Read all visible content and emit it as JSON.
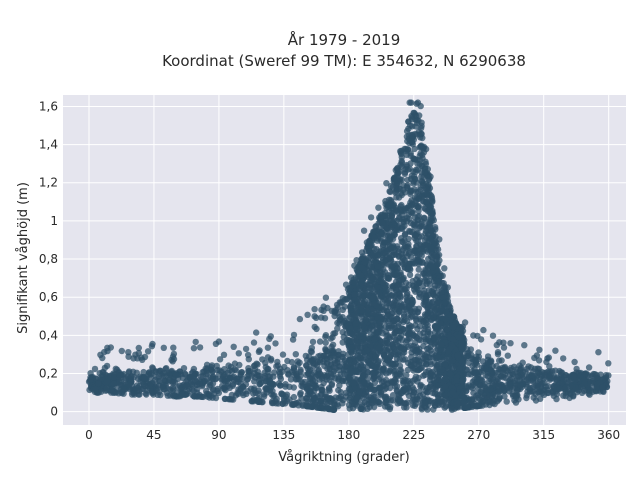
{
  "chart_data": {
    "type": "scatter",
    "title": "År 1979 - 2019",
    "subtitle": "Koordinat (Sweref 99 TM): E 354632, N 6290638",
    "xlabel": "Vågriktning (grader)",
    "ylabel": "Signifikant våghöjd (m)",
    "xlim": [
      -18,
      372
    ],
    "ylim": [
      -0.07,
      1.66
    ],
    "xticks": [
      0,
      45,
      90,
      135,
      180,
      225,
      270,
      315,
      360
    ],
    "xtick_labels": [
      "0",
      "45",
      "90",
      "135",
      "180",
      "225",
      "270",
      "315",
      "360"
    ],
    "yticks": [
      0,
      0.2,
      0.4,
      0.6,
      0.8,
      1.0,
      1.2,
      1.4,
      1.6
    ],
    "ytick_labels": [
      "0",
      "0,2",
      "0,4",
      "0,6",
      "0,8",
      "1",
      "1,2",
      "1,4",
      "1,6"
    ],
    "grid": true,
    "legend": "none",
    "marker_color": "#2e5068",
    "plot_background": "#e5e5ee",
    "grid_color": "#ffffff",
    "envelope": {
      "description_x": [
        0,
        15,
        30,
        45,
        60,
        75,
        90,
        105,
        120,
        135,
        150,
        160,
        170,
        180,
        190,
        200,
        210,
        215,
        220,
        225,
        230,
        235,
        240,
        245,
        250,
        255,
        260,
        270,
        285,
        300,
        315,
        330,
        345,
        360
      ],
      "upper": [
        0.2,
        0.22,
        0.23,
        0.24,
        0.25,
        0.26,
        0.27,
        0.28,
        0.3,
        0.33,
        0.38,
        0.45,
        0.53,
        0.66,
        0.82,
        1.0,
        1.2,
        1.35,
        1.5,
        1.6,
        1.56,
        1.3,
        0.98,
        0.72,
        0.55,
        0.47,
        0.42,
        0.33,
        0.27,
        0.24,
        0.22,
        0.21,
        0.2,
        0.19
      ],
      "lower": [
        0.1,
        0.1,
        0.09,
        0.09,
        0.08,
        0.08,
        0.07,
        0.06,
        0.05,
        0.04,
        0.03,
        0.02,
        0.01,
        0.01,
        0.01,
        0.01,
        0.01,
        0.01,
        0.01,
        0.01,
        0.01,
        0.01,
        0.01,
        0.01,
        0.01,
        0.01,
        0.02,
        0.03,
        0.04,
        0.05,
        0.06,
        0.07,
        0.08,
        0.1
      ]
    }
  }
}
